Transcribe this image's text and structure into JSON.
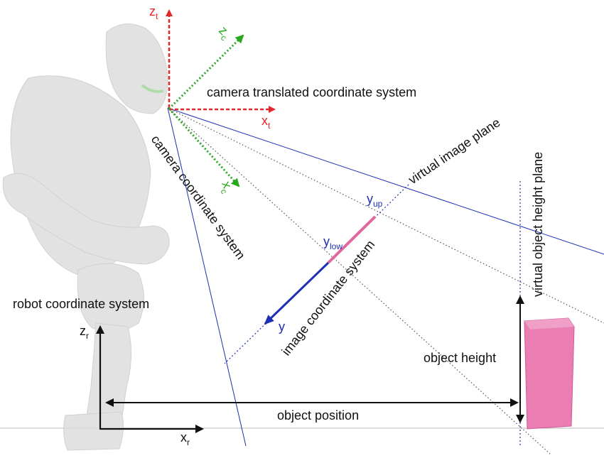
{
  "figure": {
    "title": "",
    "labels": {
      "camera_translated": "camera translated coordinate system",
      "camera": "camera coordinate system",
      "virtual_image_plane": "virtual image plane",
      "virtual_object_height_plane": "virtual object height plane",
      "image_coordinate_system": "image coordinate system",
      "robot_coordinate_system": "robot coordinate system",
      "object_height": "object height",
      "object_position": "object position"
    },
    "axes": {
      "zt": {
        "base": "z",
        "sub": "t"
      },
      "xt": {
        "base": "x",
        "sub": "t"
      },
      "zc": {
        "base": "z",
        "sub": "c"
      },
      "xc": {
        "base": "x",
        "sub": "c"
      },
      "zr": {
        "base": "z",
        "sub": "r"
      },
      "xr": {
        "base": "x",
        "sub": "r"
      },
      "y": {
        "base": "y"
      },
      "ylow": {
        "base": "y",
        "sub": "low"
      },
      "yup": {
        "base": "y",
        "sub": "up"
      }
    },
    "colors": {
      "red": "#e5262b",
      "green": "#29a81f",
      "blue": "#1d2fb3",
      "pink": "#e0689f",
      "object": "#ea7db1",
      "robot": "#dcdcdc"
    }
  }
}
